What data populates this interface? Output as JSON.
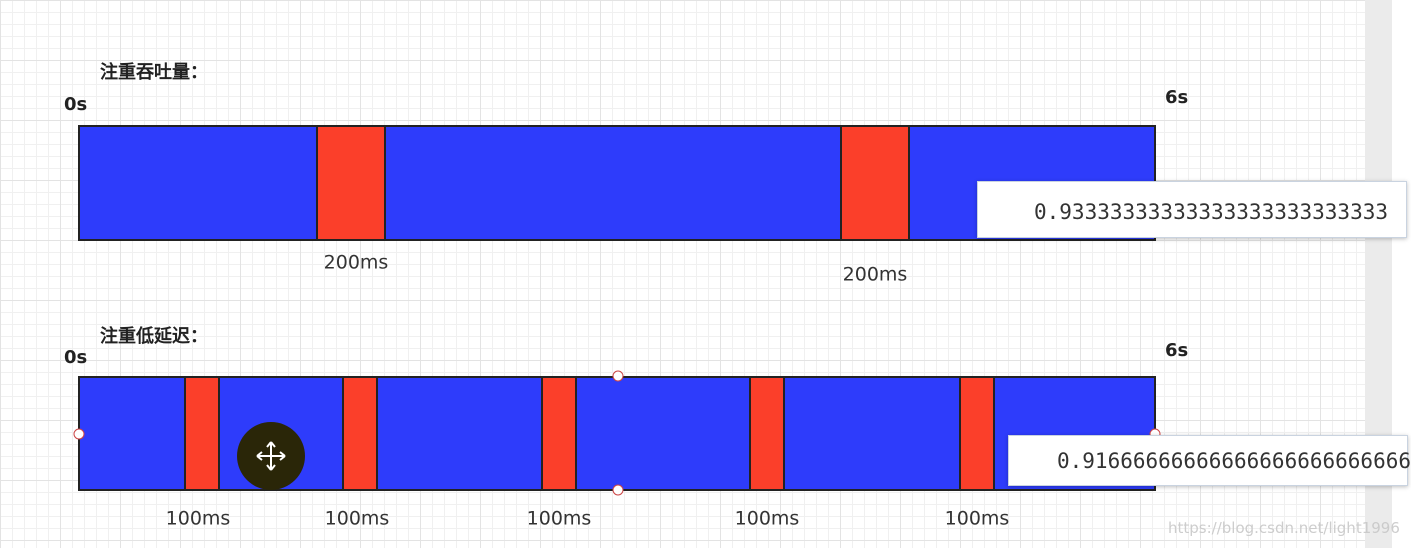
{
  "sections": [
    {
      "title": "注重吞吐量：",
      "start": "0s",
      "end": "6s",
      "pauses": [
        "200ms",
        "200ms"
      ],
      "ratio": "0.93333333333333333333333333"
    },
    {
      "title": "注重低延迟：",
      "start": "0s",
      "end": "6s",
      "pauses": [
        "100ms",
        "100ms",
        "100ms",
        "100ms",
        "100ms"
      ],
      "ratio": "0.91666666666666666666666666"
    }
  ],
  "watermark": "https://blog.csdn.net/light1996"
}
